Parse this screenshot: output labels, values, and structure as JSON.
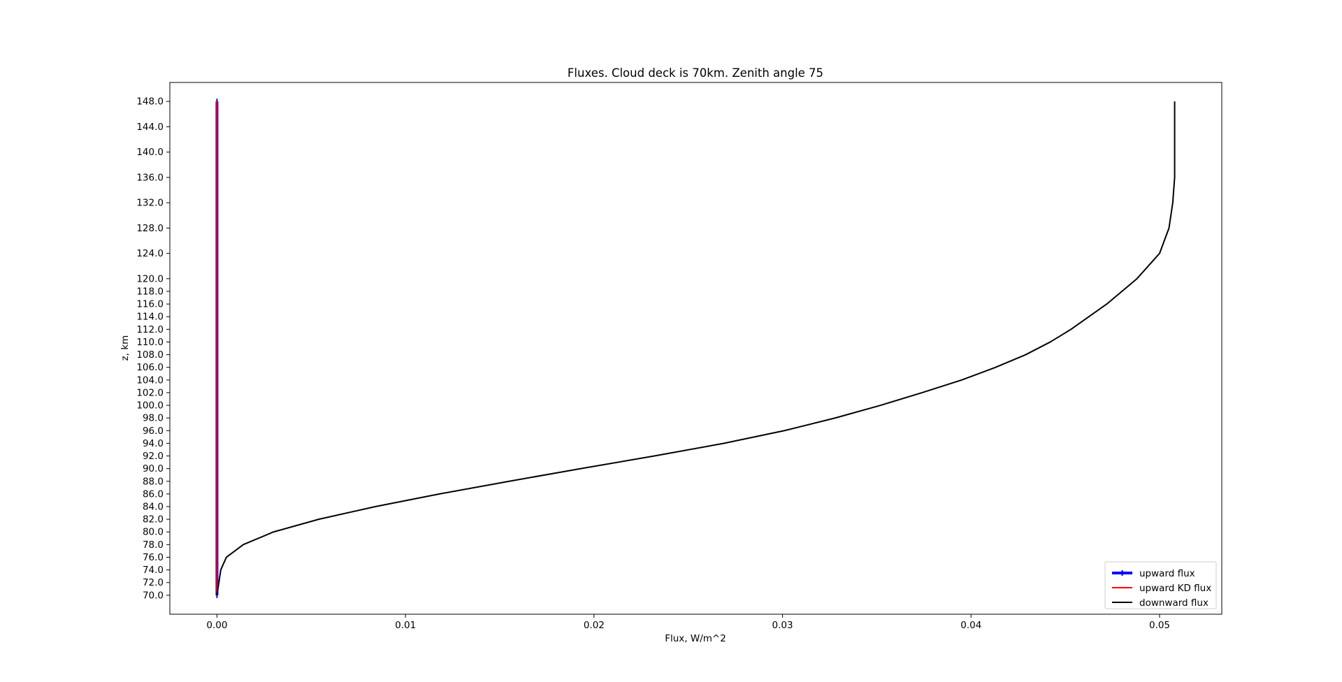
{
  "chart_data": {
    "type": "line",
    "title": "Fluxes. Cloud deck is 70km. Zenith angle 75",
    "xlabel": "Flux, W/m^2",
    "ylabel": "z, km",
    "xlim": [
      -0.0025,
      0.0533
    ],
    "ylim": [
      67,
      151
    ],
    "xticks": [
      0.0,
      0.01,
      0.02,
      0.03,
      0.04,
      0.05
    ],
    "xtick_labels": [
      "0.00",
      "0.01",
      "0.02",
      "0.03",
      "0.04",
      "0.05"
    ],
    "yticks": [
      70,
      72,
      74,
      76,
      78,
      80,
      82,
      84,
      86,
      88,
      90,
      92,
      94,
      96,
      98,
      100,
      102,
      104,
      106,
      108,
      110,
      112,
      114,
      116,
      118,
      120,
      124,
      128,
      132,
      136,
      140,
      144,
      148
    ],
    "ytick_labels": [
      "70.0",
      "72.0",
      "74.0",
      "76.0",
      "78.0",
      "80.0",
      "82.0",
      "84.0",
      "86.0",
      "88.0",
      "90.0",
      "92.0",
      "94.0",
      "96.0",
      "98.0",
      "100.0",
      "102.0",
      "104.0",
      "106.0",
      "108.0",
      "110.0",
      "112.0",
      "114.0",
      "116.0",
      "118.0",
      "120.0",
      "124.0",
      "128.0",
      "132.0",
      "136.0",
      "140.0",
      "144.0",
      "148.0"
    ],
    "grid": false,
    "legend_position": "bottom-right",
    "series": [
      {
        "name": "upward flux",
        "color": "#0000ff",
        "style": "thick-marker",
        "x": [
          0.0,
          0.0,
          0.0,
          0.0
        ],
        "y": [
          70,
          90,
          120,
          148
        ]
      },
      {
        "name": "upward KD flux",
        "color": "#ff0000",
        "style": "line",
        "x": [
          0.0,
          0.0,
          0.0,
          0.0
        ],
        "y": [
          70,
          90,
          120,
          148
        ]
      },
      {
        "name": "downward flux",
        "color": "#000000",
        "style": "line",
        "x": [
          0.0,
          0.0001,
          0.0002,
          0.0005,
          0.0014,
          0.003,
          0.0054,
          0.0084,
          0.0118,
          0.0155,
          0.0193,
          0.0232,
          0.0269,
          0.0301,
          0.0328,
          0.0352,
          0.0374,
          0.0395,
          0.0413,
          0.0429,
          0.0442,
          0.0453,
          0.0472,
          0.0488,
          0.05,
          0.0505,
          0.0507,
          0.0508,
          0.0508,
          0.0508
        ],
        "y": [
          70,
          72,
          74,
          76,
          78,
          80,
          82,
          84,
          86,
          88,
          90,
          92,
          94,
          96,
          98,
          100,
          102,
          104,
          106,
          108,
          110,
          112,
          116,
          120,
          124,
          128,
          132,
          136,
          140,
          148
        ]
      }
    ]
  }
}
